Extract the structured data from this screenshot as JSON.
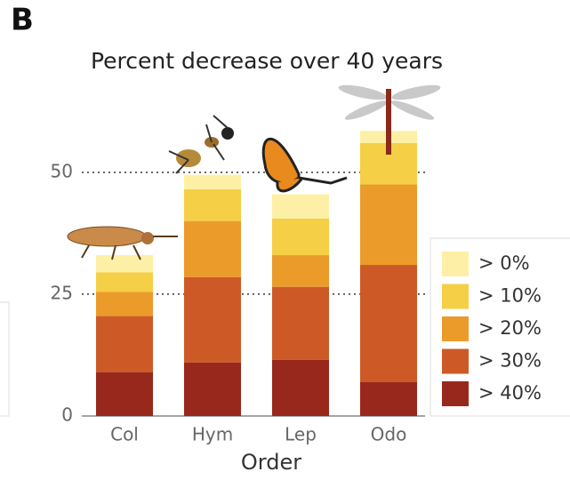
{
  "chart_data": {
    "type": "stacked-bar",
    "panel_label": "B",
    "title": "Percent decrease over 40 years",
    "x_label": "Order",
    "categories": [
      "Col",
      "Hym",
      "Lep",
      "Odo"
    ],
    "series": [
      {
        "name": "> 40%",
        "color": "#98281c",
        "values": [
          9,
          11,
          11.5,
          7
        ]
      },
      {
        "name": "> 30%",
        "color": "#cd5a26",
        "values": [
          11.5,
          17.5,
          15,
          24
        ]
      },
      {
        "name": "> 20%",
        "color": "#eb9b2a",
        "values": [
          5,
          11.5,
          6.5,
          16.5
        ]
      },
      {
        "name": "> 10%",
        "color": "#f5cf45",
        "values": [
          4,
          6.5,
          7.5,
          8.5
        ]
      },
      {
        "name": "> 0%",
        "color": "#fdf0a6",
        "values": [
          3.5,
          3,
          5,
          2.5
        ]
      }
    ],
    "ylim": [
      0,
      60
    ],
    "yticks": [
      0,
      25,
      50
    ],
    "grid": true
  }
}
